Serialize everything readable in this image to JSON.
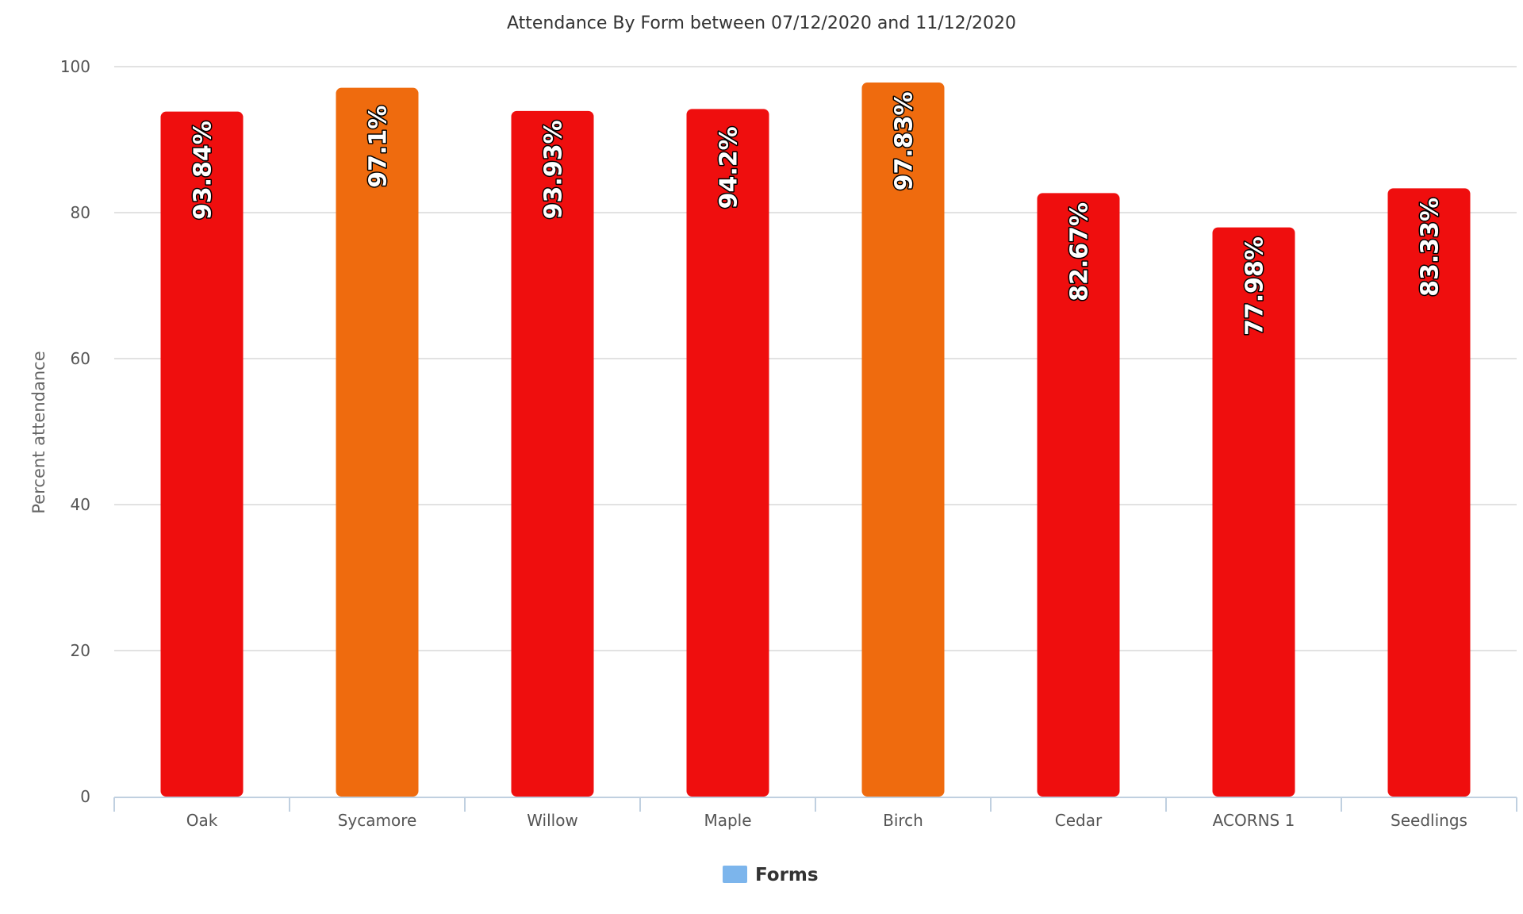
{
  "chart_data": {
    "type": "bar",
    "title": "Attendance By Form between 07/12/2020 and 11/12/2020",
    "xlabel": "",
    "ylabel": "Percent attendance",
    "ylim": [
      0,
      100
    ],
    "yticks": [
      "0",
      "20",
      "40",
      "60",
      "80",
      "100"
    ],
    "grid": true,
    "legend_position": "bottom",
    "categories": [
      "Oak",
      "Sycamore",
      "Willow",
      "Maple",
      "Birch",
      "Cedar",
      "ACORNS 1",
      "Seedlings"
    ],
    "series": [
      {
        "name": "Forms",
        "values": [
          93.84,
          97.1,
          93.93,
          94.2,
          97.83,
          82.67,
          77.98,
          83.33
        ],
        "labels": [
          "93.84%",
          "97.1%",
          "93.93%",
          "94.2%",
          "97.83%",
          "82.67%",
          "77.98%",
          "83.33%"
        ],
        "colors": [
          "#ef0e0e",
          "#ef6b0e",
          "#ef0e0e",
          "#ef0e0e",
          "#ef6b0e",
          "#ef0e0e",
          "#ef0e0e",
          "#ef0e0e"
        ]
      }
    ],
    "legend_color": "#7cb5ec"
  }
}
